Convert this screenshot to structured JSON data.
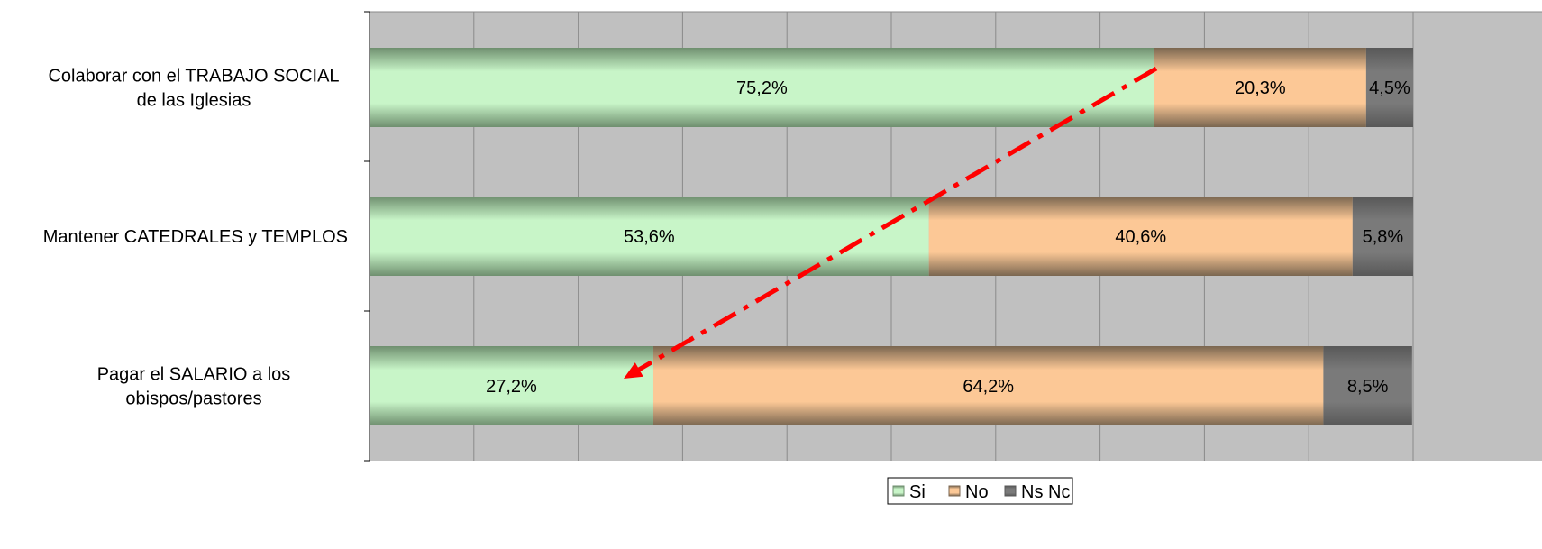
{
  "chart_data": {
    "type": "bar",
    "orientation": "horizontal",
    "stacked": "percent",
    "categories": [
      [
        "Colaborar con el TRABAJO SOCIAL",
        "de las Iglesias"
      ],
      [
        "Mantener CATEDRALES y TEMPLOS"
      ],
      [
        "Pagar el SALARIO a los",
        "obispos/pastores"
      ]
    ],
    "series": [
      {
        "name": "Si",
        "values": [
          75.2,
          53.6,
          27.2
        ],
        "labels": [
          "75,2%",
          "53,6%",
          "27,2%"
        ],
        "color": "#c8f5c8",
        "shade": "#6f8f6f"
      },
      {
        "name": "No",
        "values": [
          20.3,
          40.6,
          64.2
        ],
        "labels": [
          "20,3%",
          "40,6%",
          "64,2%"
        ],
        "color": "#fcc896",
        "shade": "#7a6650"
      },
      {
        "name": "Ns Nc",
        "values": [
          4.5,
          5.8,
          8.5
        ],
        "labels": [
          "4,5%",
          "5,8%",
          "8,5%"
        ],
        "color": "#7a7a7a",
        "shade": "#585858"
      }
    ],
    "xlim": [
      0,
      100
    ],
    "grid": true,
    "plot_background": "#c0c0c0",
    "legend": "bottom-center",
    "annotation": {
      "type": "dash-dot-arrow",
      "color": "#ff0000",
      "from": {
        "category": 0,
        "x": 75.2
      },
      "to": {
        "category": 2,
        "x": 27.2
      }
    }
  }
}
